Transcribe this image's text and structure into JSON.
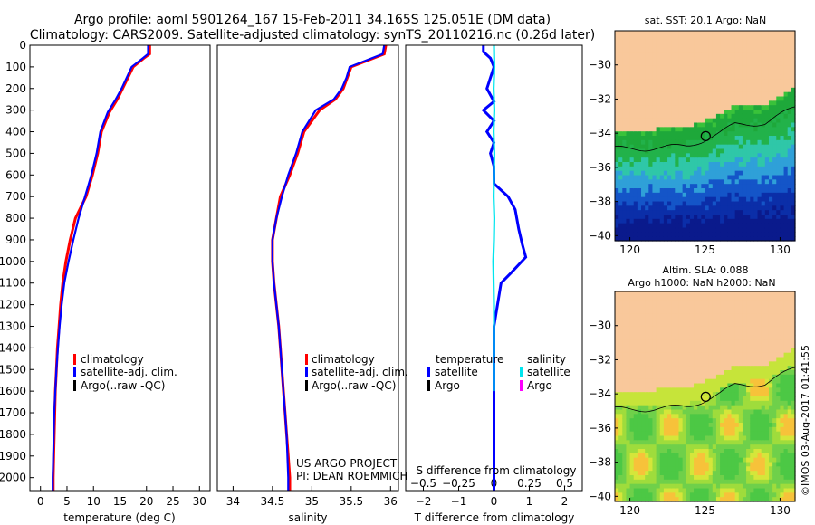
{
  "header": {
    "title_line1": "Argo profile: aoml 5901264_167 15-Feb-2011 34.165S 125.051E (DM data)",
    "title_line2": "Climatology: CARS2009. Satellite-adjusted climatology: synTS_20110216.nc (0.26d later)"
  },
  "colors": {
    "climatology": "#ff0000",
    "satellite": "#0000ff",
    "argo": "#000000",
    "salinity_satellite": "#00e5ee",
    "salinity_argo": "#ff00ff",
    "land": "#f9c89b"
  },
  "credits": {
    "project": "US ARGO PROJECT",
    "pi": "PI: DEAN ROEMMICH",
    "stamp": "©IMOS 03-Aug-2017 01:41:55"
  },
  "chart_data": [
    {
      "type": "line",
      "id": "temperature",
      "xlabel": "temperature (deg C)",
      "xlim": [
        -2,
        32
      ],
      "xticks": [
        0,
        5,
        10,
        15,
        20,
        25,
        30
      ],
      "ylim": [
        2060,
        0
      ],
      "yticks": [
        0,
        100,
        200,
        300,
        400,
        500,
        600,
        700,
        800,
        900,
        1000,
        1100,
        1200,
        1300,
        1400,
        1500,
        1600,
        1700,
        1800,
        1900,
        2000
      ],
      "legend": [
        "climatology",
        "satellite-adj. clim.",
        "Argo(..raw -QC)"
      ],
      "legend_position": "lower-center",
      "series": [
        {
          "name": "climatology",
          "color": "#ff0000",
          "points": [
            [
              20.6,
              0
            ],
            [
              20.6,
              40
            ],
            [
              19.5,
              60
            ],
            [
              17.5,
              100
            ],
            [
              15.5,
              200
            ],
            [
              14.5,
              250
            ],
            [
              13,
              310
            ],
            [
              11.5,
              400
            ],
            [
              10.8,
              500
            ],
            [
              9.8,
              600
            ],
            [
              8.6,
              700
            ],
            [
              6.6,
              800
            ],
            [
              5.6,
              900
            ],
            [
              4.8,
              1000
            ],
            [
              4.2,
              1100
            ],
            [
              3.8,
              1200
            ],
            [
              3.5,
              1300
            ],
            [
              3.2,
              1400
            ],
            [
              3,
              1500
            ],
            [
              2.8,
              1600
            ],
            [
              2.7,
              1700
            ],
            [
              2.6,
              1800
            ],
            [
              2.5,
              1900
            ],
            [
              2.4,
              2000
            ],
            [
              2.4,
              2060
            ]
          ]
        },
        {
          "name": "satellite-adj. clim.",
          "color": "#0000ff",
          "points": [
            [
              20.3,
              0
            ],
            [
              20.3,
              40
            ],
            [
              19.3,
              60
            ],
            [
              17.2,
              100
            ],
            [
              15.3,
              200
            ],
            [
              14.2,
              250
            ],
            [
              12.7,
              310
            ],
            [
              11.3,
              400
            ],
            [
              10.6,
              500
            ],
            [
              9.6,
              600
            ],
            [
              8.4,
              700
            ],
            [
              7.2,
              800
            ],
            [
              6.2,
              900
            ],
            [
              5.3,
              1000
            ],
            [
              4.5,
              1100
            ],
            [
              4,
              1200
            ],
            [
              3.6,
              1300
            ],
            [
              3.3,
              1400
            ],
            [
              3,
              1500
            ],
            [
              2.8,
              1600
            ],
            [
              2.6,
              1700
            ],
            [
              2.5,
              1800
            ],
            [
              2.4,
              1900
            ],
            [
              2.3,
              2000
            ],
            [
              2.3,
              2060
            ]
          ]
        }
      ]
    },
    {
      "type": "line",
      "id": "salinity",
      "xlabel": "salinity",
      "xlim": [
        33.8,
        36.1
      ],
      "xticks": [
        34,
        34.5,
        35,
        35.5,
        36
      ],
      "ylim": [
        2060,
        0
      ],
      "legend": [
        "climatology",
        "satellite-adj. clim.",
        "Argo(..raw -QC)"
      ],
      "legend_position": "lower-center",
      "series": [
        {
          "name": "climatology",
          "color": "#ff0000",
          "points": [
            [
              35.94,
              0
            ],
            [
              35.92,
              40
            ],
            [
              35.5,
              100
            ],
            [
              35.45,
              150
            ],
            [
              35.4,
              200
            ],
            [
              35.3,
              250
            ],
            [
              35.1,
              300
            ],
            [
              34.9,
              400
            ],
            [
              34.82,
              500
            ],
            [
              34.72,
              600
            ],
            [
              34.6,
              700
            ],
            [
              34.55,
              800
            ],
            [
              34.5,
              900
            ],
            [
              34.5,
              1000
            ],
            [
              34.52,
              1100
            ],
            [
              34.55,
              1200
            ],
            [
              34.58,
              1300
            ],
            [
              34.6,
              1400
            ],
            [
              34.62,
              1500
            ],
            [
              34.64,
              1600
            ],
            [
              34.66,
              1700
            ],
            [
              34.68,
              1800
            ],
            [
              34.7,
              1900
            ],
            [
              34.72,
              2000
            ],
            [
              34.72,
              2060
            ]
          ]
        },
        {
          "name": "satellite-adj. clim.",
          "color": "#0000ff",
          "points": [
            [
              35.92,
              0
            ],
            [
              35.9,
              40
            ],
            [
              35.48,
              100
            ],
            [
              35.44,
              150
            ],
            [
              35.38,
              200
            ],
            [
              35.28,
              250
            ],
            [
              35.05,
              300
            ],
            [
              34.88,
              400
            ],
            [
              34.8,
              500
            ],
            [
              34.7,
              600
            ],
            [
              34.62,
              700
            ],
            [
              34.55,
              800
            ],
            [
              34.5,
              900
            ],
            [
              34.5,
              1000
            ],
            [
              34.52,
              1100
            ],
            [
              34.55,
              1200
            ],
            [
              34.58,
              1300
            ],
            [
              34.6,
              1400
            ],
            [
              34.62,
              1500
            ],
            [
              34.64,
              1600
            ],
            [
              34.66,
              1700
            ],
            [
              34.68,
              1800
            ],
            [
              34.69,
              1900
            ],
            [
              34.7,
              2000
            ],
            [
              34.7,
              2060
            ]
          ]
        }
      ]
    },
    {
      "type": "line",
      "id": "difference",
      "xlabel": "T difference from climatology",
      "xlabel_top": "S difference from climatology",
      "xlim": [
        -2.5,
        2.5
      ],
      "xticks": [
        -2,
        -1,
        0,
        1,
        2
      ],
      "xtick_labels": [
        "−2",
        "−1",
        "0",
        "1",
        "2"
      ],
      "sticks": [
        -0.5,
        -0.25,
        0,
        0.25,
        0.5
      ],
      "stick_labels": [
        "−0.5",
        "−0.25",
        "0",
        "0.25",
        "0.5"
      ],
      "ylim": [
        2060,
        0
      ],
      "legend_headers": [
        "temperature",
        "salinity"
      ],
      "legend": [
        "satellite",
        "Argo",
        "satellite",
        "Argo"
      ],
      "legend_position": "lower-center",
      "series": [
        {
          "name": "temperature satellite",
          "color": "#0000ff",
          "points": [
            [
              -0.3,
              0
            ],
            [
              -0.3,
              30
            ],
            [
              -0.1,
              60
            ],
            [
              0,
              100
            ],
            [
              -0.1,
              150
            ],
            [
              -0.2,
              200
            ],
            [
              0,
              260
            ],
            [
              -0.3,
              300
            ],
            [
              0,
              350
            ],
            [
              -0.2,
              400
            ],
            [
              0,
              450
            ],
            [
              -0.1,
              500
            ],
            [
              0,
              560
            ],
            [
              0,
              640
            ],
            [
              0.4,
              700
            ],
            [
              0.6,
              760
            ],
            [
              0.7,
              850
            ],
            [
              0.8,
              920
            ],
            [
              0.9,
              980
            ],
            [
              0.5,
              1050
            ],
            [
              0.2,
              1100
            ],
            [
              0.1,
              1200
            ],
            [
              0,
              1300
            ],
            [
              0,
              2060
            ]
          ]
        },
        {
          "name": "salinity satellite",
          "color": "#00e5ee",
          "points": [
            [
              0,
              0
            ],
            [
              0.01,
              100
            ],
            [
              -0.01,
              200
            ],
            [
              0.01,
              300
            ],
            [
              -0.01,
              400
            ],
            [
              0.01,
              500
            ],
            [
              0,
              600
            ],
            [
              -0.01,
              700
            ],
            [
              0.01,
              800
            ],
            [
              0,
              900
            ],
            [
              -0.02,
              1000
            ],
            [
              -0.01,
              1100
            ],
            [
              0,
              1200
            ],
            [
              0,
              1300
            ],
            [
              0,
              1400
            ],
            [
              0,
              1500
            ],
            [
              0,
              1600
            ]
          ]
        }
      ]
    },
    {
      "type": "heatmap",
      "id": "sst_map",
      "title": "sat. SST: 20.1 Argo: NaN",
      "xlim": [
        119,
        131
      ],
      "ylim": [
        -40.3,
        -28
      ],
      "xticks": [
        120,
        125,
        130
      ],
      "yticks": [
        -30,
        -32,
        -34,
        -36,
        -38,
        -40
      ],
      "ytick_labels": [
        "−30",
        "−32",
        "−34",
        "−36",
        "−38",
        "−40"
      ],
      "marker": [
        125.05,
        -34.17
      ]
    },
    {
      "type": "heatmap",
      "id": "sla_map",
      "title": "Altim. SLA: 0.088",
      "title2": "Argo h1000: NaN h2000: NaN",
      "xlim": [
        119,
        131
      ],
      "ylim": [
        -40.3,
        -28
      ],
      "xticks": [
        120,
        125,
        130
      ],
      "yticks": [
        -30,
        -32,
        -34,
        -36,
        -38,
        -40
      ],
      "ytick_labels": [
        "−30",
        "−32",
        "−34",
        "−36",
        "−38",
        "−40"
      ],
      "marker": [
        125.05,
        -34.17
      ]
    }
  ]
}
